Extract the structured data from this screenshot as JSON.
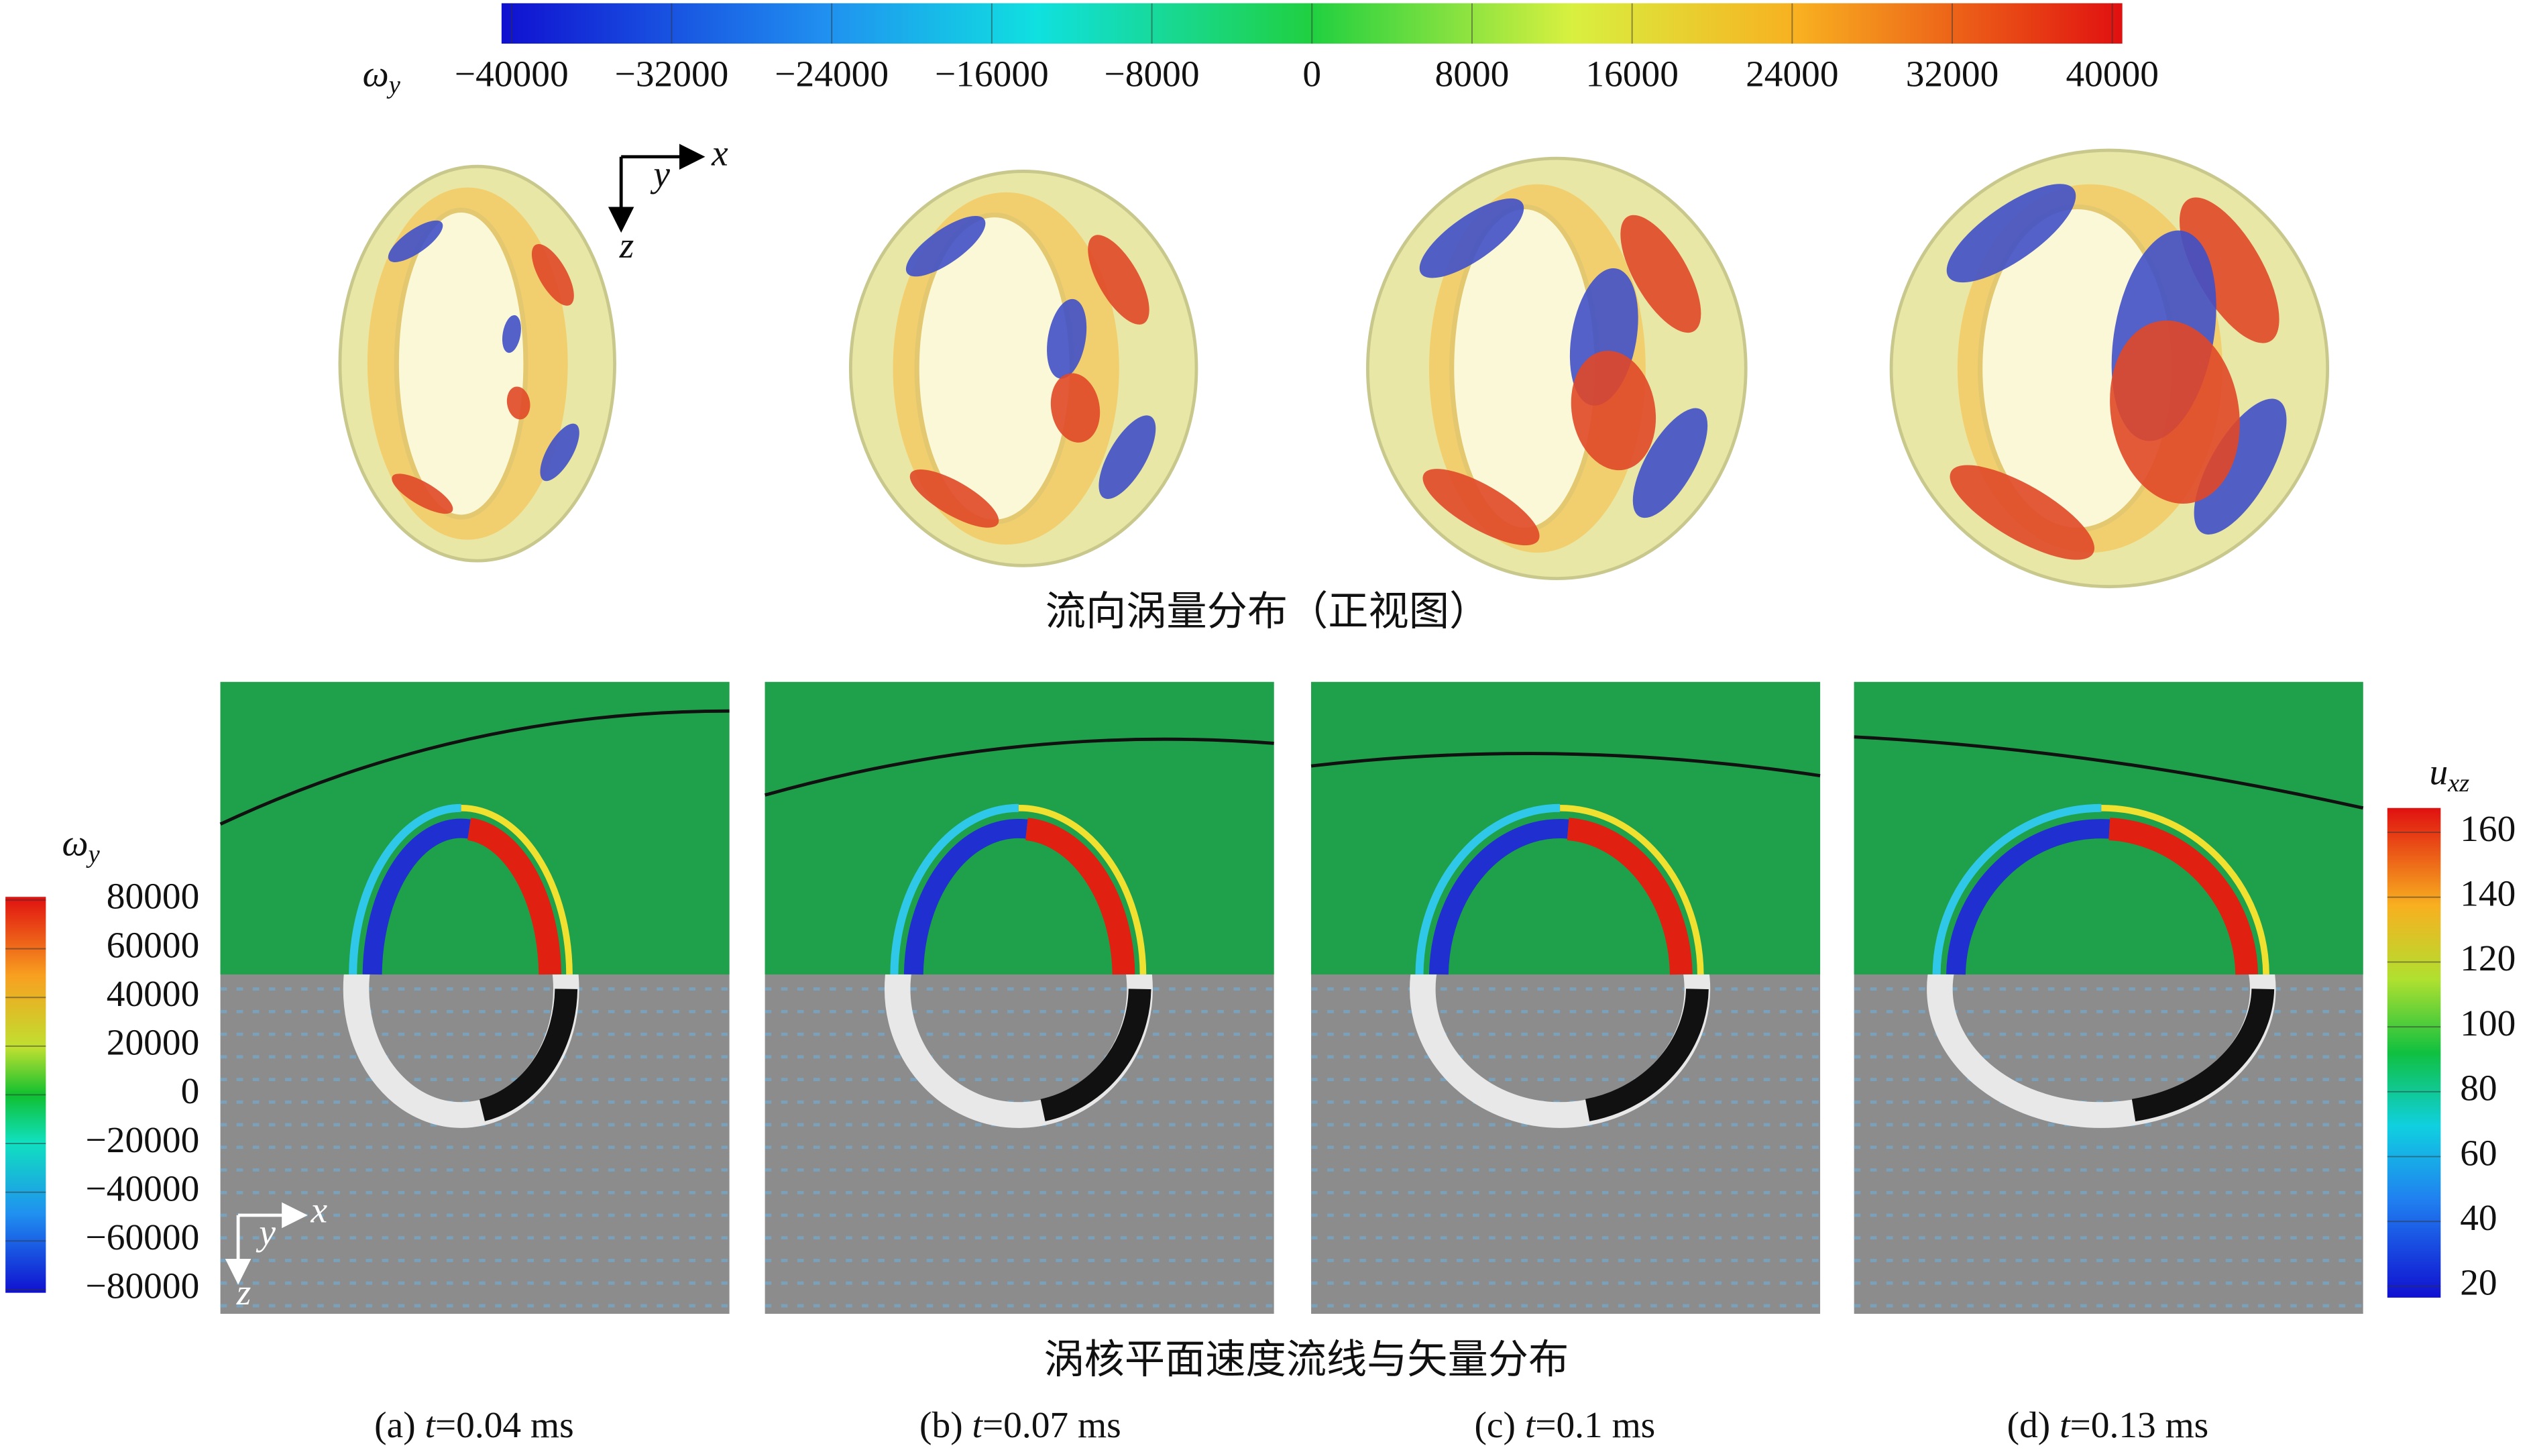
{
  "top_colorbar": {
    "title": {
      "symbol": "ω",
      "subscript": "y"
    },
    "range": [
      -40500,
      40500
    ],
    "ticks": [
      {
        "value": -40000,
        "label": "−40000"
      },
      {
        "value": -32000,
        "label": "−32000"
      },
      {
        "value": -24000,
        "label": "−24000"
      },
      {
        "value": -16000,
        "label": "−16000"
      },
      {
        "value": -8000,
        "label": "−8000"
      },
      0,
      8000,
      16000,
      24000,
      32000,
      40000
    ]
  },
  "front_view": {
    "axes": {
      "x": "x",
      "y": "y",
      "z": "z"
    },
    "caption": "流向涡量分布（正视图）"
  },
  "left_colorbar": {
    "title": {
      "symbol": "ω",
      "subscript": "y"
    },
    "range": [
      -81300,
      81300
    ],
    "ticks": [
      80000,
      60000,
      40000,
      20000,
      0,
      {
        "value": -20000,
        "label": "−20000"
      },
      {
        "value": -40000,
        "label": "−40000"
      },
      {
        "value": -60000,
        "label": "−60000"
      },
      {
        "value": -80000,
        "label": "−80000"
      }
    ]
  },
  "right_colorbar": {
    "title": {
      "symbol": "u",
      "subscript": "xz"
    },
    "range": [
      16.5,
      167.5
    ],
    "ticks": [
      160,
      140,
      120,
      100,
      80,
      60,
      40,
      20
    ]
  },
  "plane_view": {
    "axes": {
      "x": "x",
      "y": "y",
      "z": "z"
    },
    "caption": "涡核平面速度流线与矢量分布"
  },
  "panels": [
    {
      "label": "(a)",
      "variable": "t",
      "value": "=0.04 ms"
    },
    {
      "label": "(b)",
      "variable": "t",
      "value": "=0.07 ms"
    },
    {
      "label": "(c)",
      "variable": "t",
      "value": "=0.1 ms"
    },
    {
      "label": "(d)",
      "variable": "t",
      "value": "=0.13 ms"
    }
  ]
}
